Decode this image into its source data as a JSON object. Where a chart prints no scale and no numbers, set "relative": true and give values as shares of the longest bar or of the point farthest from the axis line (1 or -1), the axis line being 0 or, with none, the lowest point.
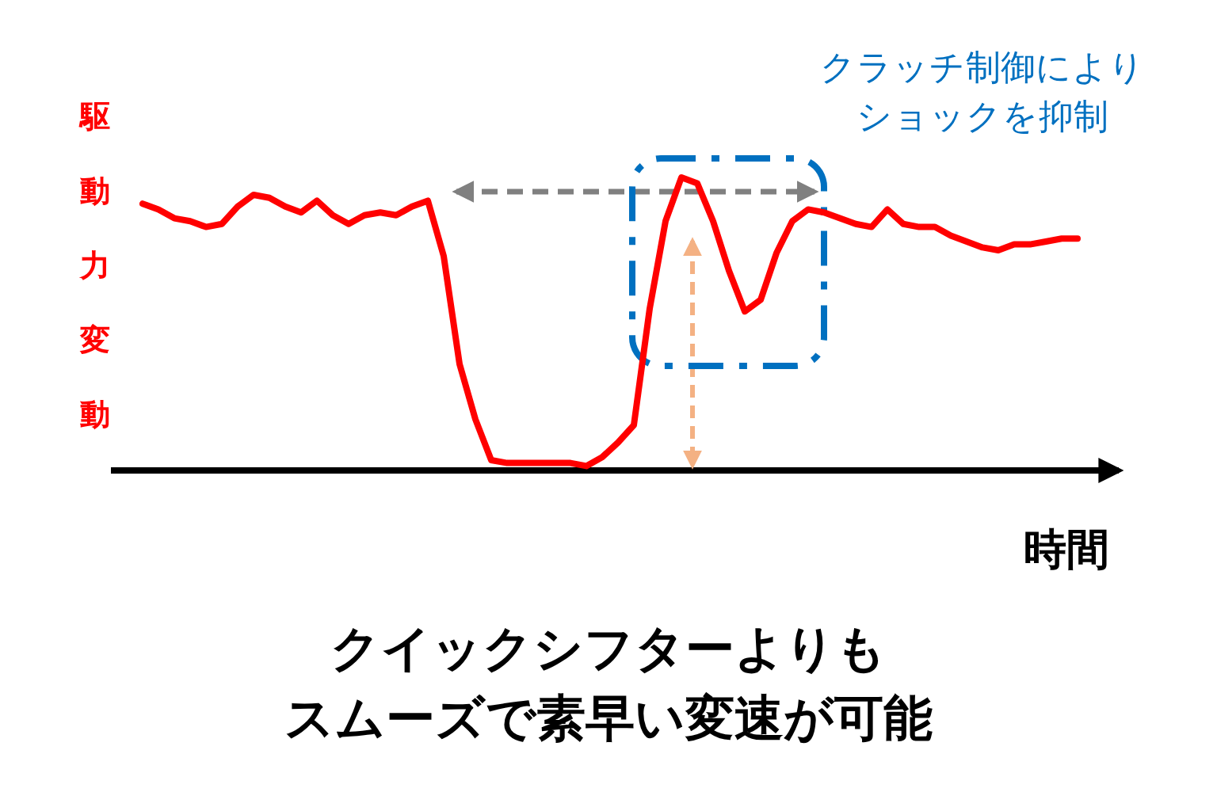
{
  "chart_data": {
    "type": "line",
    "relative": true,
    "ylabel": "駆動力変動",
    "xlabel": "時間",
    "annotations": [
      "クラッチ制御によりショックを抑制",
      "クイックシフターよりもスムーズで素早い変速が可能"
    ],
    "categories": [
      null,
      null,
      null,
      null,
      null,
      null,
      null,
      null,
      null,
      null,
      null,
      null,
      null,
      null,
      null,
      null,
      null,
      null,
      null,
      null,
      null,
      null,
      null,
      null,
      null,
      null,
      null,
      null,
      null,
      null,
      null,
      null,
      null,
      null,
      null,
      null,
      null,
      null,
      null,
      null,
      null,
      null,
      null,
      null,
      null,
      null,
      null,
      null,
      null,
      null,
      null,
      null,
      null,
      null,
      null,
      null,
      null,
      null,
      null,
      null
    ],
    "series": [
      {
        "color": "#ff0000",
        "values": [
          0.91,
          0.89,
          0.86,
          0.85,
          0.83,
          0.84,
          0.9,
          0.94,
          0.93,
          0.9,
          0.88,
          0.92,
          0.87,
          0.84,
          0.87,
          0.88,
          0.87,
          0.9,
          0.92,
          0.73,
          0.36,
          0.17,
          0.03,
          0.02,
          0.02,
          0.02,
          0.02,
          0.02,
          0.01,
          0.04,
          0.09,
          0.15,
          0.55,
          0.85,
          1,
          0.98,
          0.85,
          0.68,
          0.54,
          0.58,
          0.74,
          0.85,
          0.89,
          0.88,
          0.86,
          0.84,
          0.83,
          0.89,
          0.84,
          0.83,
          0.83,
          0.8,
          0.78,
          0.76,
          0.75,
          0.77,
          0.77,
          0.78,
          0.79,
          0.79
        ]
      }
    ]
  }
}
